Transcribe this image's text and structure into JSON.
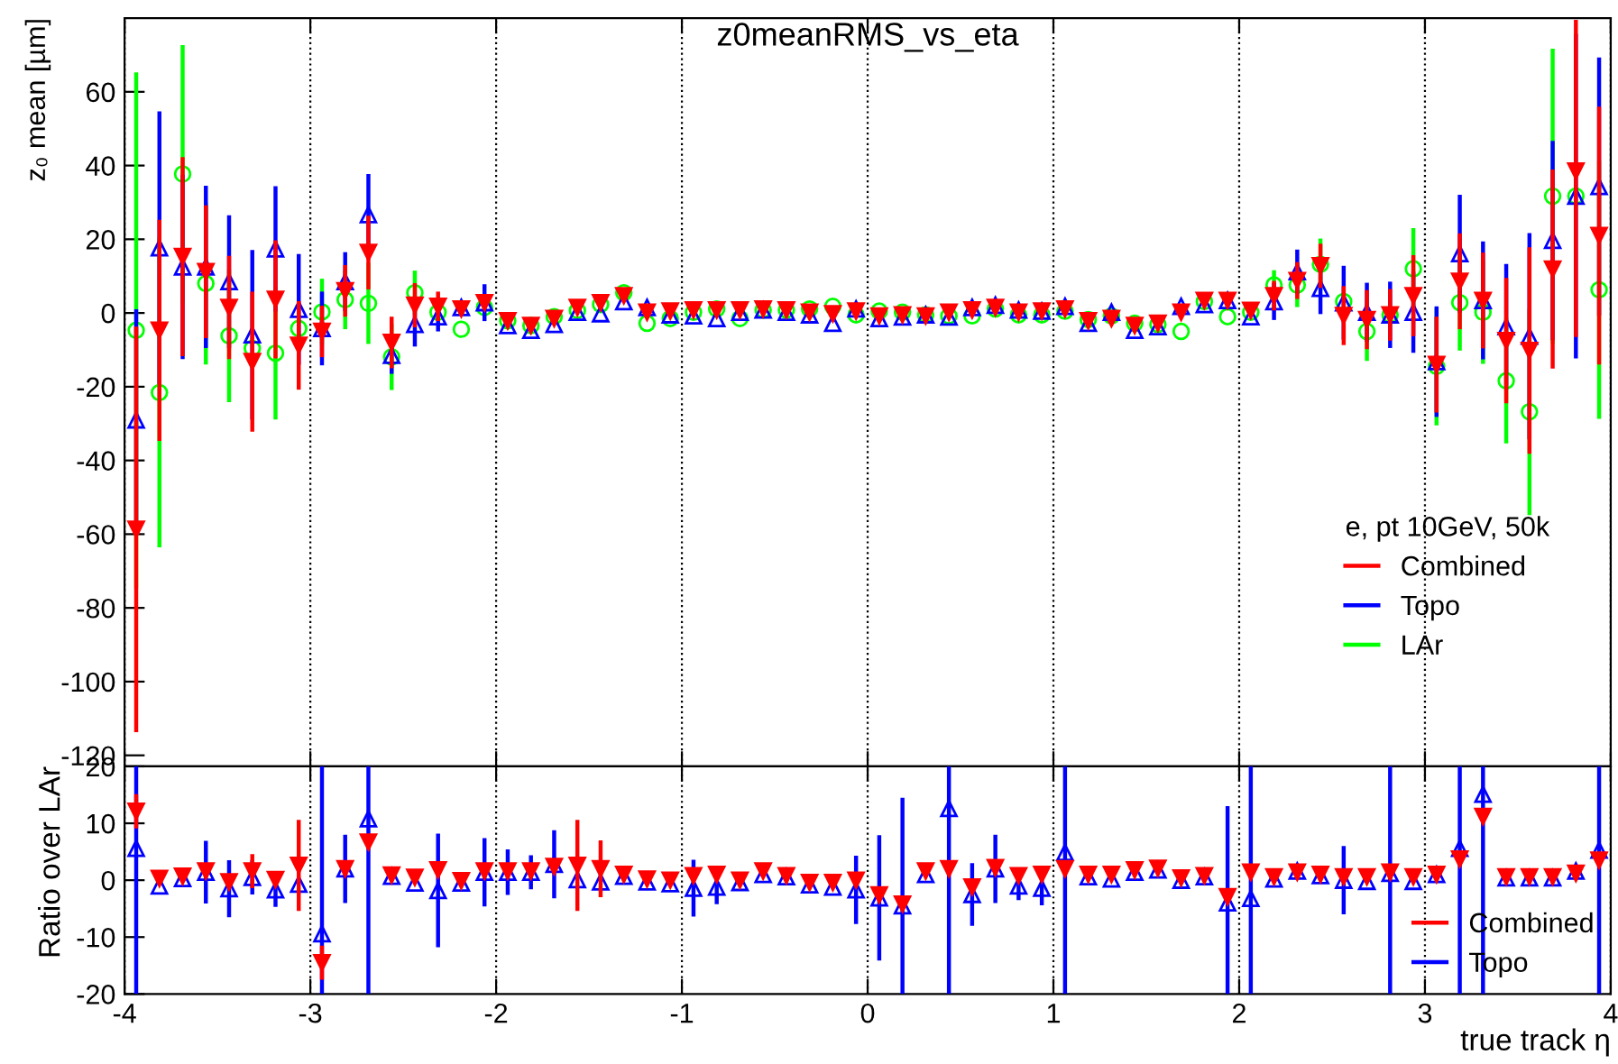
{
  "chart_data": [
    {
      "type": "scatter",
      "title": "z0meanRMS_vs_eta",
      "ylabel": "z₀ mean [µm]",
      "legend_title": "e, pt 10GeV, 50k",
      "legend": "bottom right",
      "grid": "x",
      "tick_labels": "y",
      "xlim": [
        -4,
        4
      ],
      "xticks": [
        -4,
        -3,
        -2,
        -1,
        0,
        1,
        2,
        3,
        4
      ],
      "ylim": [
        -123,
        80
      ],
      "yticks": [
        -120,
        -100,
        -80,
        -60,
        -40,
        -20,
        0,
        20,
        40,
        60
      ],
      "x": [
        -3.9375,
        -3.8125,
        -3.6875,
        -3.5625,
        -3.4375,
        -3.3125,
        -3.1875,
        -3.0625,
        -2.9375,
        -2.8125,
        -2.6875,
        -2.5625,
        -2.4375,
        -2.3125,
        -2.1875,
        -2.0625,
        -1.9375,
        -1.8125,
        -1.6875,
        -1.5625,
        -1.4375,
        -1.3125,
        -1.1875,
        -1.0625,
        -0.9375,
        -0.8125,
        -0.6875,
        -0.5625,
        -0.4375,
        -0.3125,
        -0.1875,
        -0.0625,
        0.0625,
        0.1875,
        0.3125,
        0.4375,
        0.5625,
        0.6875,
        0.8125,
        0.9375,
        1.0625,
        1.1875,
        1.3125,
        1.4375,
        1.5625,
        1.6875,
        1.8125,
        1.9375,
        2.0625,
        2.1875,
        2.3125,
        2.4375,
        2.5625,
        2.6875,
        2.8125,
        2.9375,
        3.0625,
        3.1875,
        3.3125,
        3.4375,
        3.5625,
        3.6875,
        3.8125,
        3.9375
      ],
      "series": [
        {
          "name": "Combined",
          "color": "#ff0000",
          "marker": "triangle",
          "values": [
            -58.7,
            -4.7,
            15.3,
            11.2,
            1.5,
            -13.2,
            3.7,
            -8.8,
            -5.0,
            6.0,
            16.4,
            -8.0,
            2.1,
            1.8,
            1.1,
            2.8,
            -2.1,
            -3.4,
            -1.5,
            1.5,
            2.8,
            4.7,
            0.2,
            0.5,
            0.8,
            0.8,
            0.8,
            1.1,
            0.8,
            0.2,
            -0.2,
            0.5,
            -0.8,
            -0.5,
            -0.8,
            0.2,
            0.8,
            1.5,
            0.2,
            0.5,
            1.1,
            -2.1,
            -1.5,
            -3.4,
            -2.8,
            0.2,
            3.4,
            3.4,
            0.7,
            4.7,
            8.8,
            12.8,
            -0.7,
            -1.8,
            -0.5,
            4.7,
            -14.0,
            8.6,
            3.4,
            -7.5,
            -10.2,
            11.9,
            38.5,
            21.0
          ],
          "errors": [
            55,
            30,
            27,
            18,
            14,
            19,
            16,
            12,
            7,
            7,
            10,
            7,
            6,
            4,
            null,
            null,
            null,
            null,
            null,
            null,
            null,
            null,
            null,
            null,
            null,
            null,
            null,
            null,
            null,
            null,
            null,
            null,
            null,
            null,
            null,
            null,
            null,
            null,
            null,
            null,
            null,
            null,
            null,
            null,
            null,
            null,
            null,
            null,
            null,
            4,
            5,
            6,
            8,
            8,
            7,
            11,
            13,
            13,
            13,
            17,
            28,
            27,
            [
              -6.5,
              79.5
            ],
            35
          ]
        },
        {
          "name": "Topo",
          "color": "#0000ff",
          "marker": "triangle",
          "values": [
            -29.0,
            17.7,
            12.5,
            12.5,
            8.5,
            -5.9,
            17.4,
            1.0,
            -4.2,
            8.5,
            26.7,
            -11.5,
            -3.1,
            -1.0,
            1.5,
            2.8,
            -3.4,
            -4.7,
            -3.1,
            0.2,
            -0.2,
            3.1,
            1.5,
            -0.5,
            -0.8,
            -1.5,
            0.2,
            0.8,
            0.2,
            -0.5,
            -2.8,
            1.1,
            -1.5,
            -1.1,
            -0.5,
            -1.1,
            1.5,
            2.1,
            0.8,
            0.5,
            1.8,
            -2.8,
            0.2,
            -4.7,
            -3.7,
            1.8,
            2.3,
            3.4,
            -1.0,
            3.1,
            11.2,
            6.7,
            2.8,
            0.2,
            -0.5,
            0.2,
            -13.2,
            16.1,
            3.4,
            -3.7,
            -6.3,
            19.7,
            31.7,
            34.3
          ],
          "errors": [
            30,
            37,
            25,
            22,
            18,
            23,
            17,
            15,
            10,
            8,
            11,
            5,
            6,
            4,
            null,
            5,
            null,
            null,
            null,
            null,
            null,
            null,
            null,
            null,
            null,
            null,
            null,
            null,
            null,
            null,
            null,
            null,
            null,
            null,
            null,
            null,
            null,
            null,
            null,
            null,
            null,
            null,
            null,
            null,
            null,
            null,
            null,
            null,
            null,
            5,
            6,
            7,
            10,
            8,
            9,
            11,
            15,
            16,
            16,
            17,
            28,
            27,
            44,
            35
          ]
        },
        {
          "name": "LAr",
          "color": "#00ff00",
          "marker": "circle",
          "values": [
            -4.7,
            -21.6,
            37.7,
            8.0,
            -6.2,
            -9.6,
            -10.9,
            -4.2,
            0.3,
            3.6,
            2.6,
            -11.9,
            5.5,
            0.2,
            -4.4,
            1.5,
            -2.1,
            -3.4,
            -1.0,
            0.7,
            2.3,
            5.5,
            -2.8,
            -1.5,
            0.2,
            1.1,
            -1.5,
            0.8,
            0.8,
            1.1,
            1.8,
            -0.5,
            0.5,
            0.2,
            -0.5,
            -0.8,
            -0.8,
            1.1,
            -0.5,
            -0.5,
            0.5,
            -1.8,
            -0.8,
            -2.8,
            -3.1,
            -5.0,
            3.1,
            -1.0,
            0.2,
            7.6,
            7.6,
            13.2,
            3.1,
            -5.0,
            -0.5,
            12.0,
            -14.5,
            2.8,
            0.2,
            -18.4,
            -26.8,
            31.7,
            31.7,
            6.3
          ],
          "errors": [
            70,
            42,
            35,
            22,
            18,
            null,
            18,
            null,
            9,
            8,
            11,
            9,
            6,
            null,
            null,
            null,
            null,
            null,
            null,
            null,
            null,
            null,
            null,
            null,
            null,
            null,
            null,
            null,
            null,
            null,
            null,
            null,
            null,
            null,
            null,
            null,
            null,
            null,
            null,
            null,
            null,
            null,
            null,
            null,
            null,
            null,
            null,
            null,
            null,
            4,
            6,
            7,
            null,
            8,
            null,
            11,
            16,
            13,
            14,
            17,
            28,
            40,
            null,
            35
          ]
        }
      ]
    },
    {
      "type": "scatter",
      "ylabel": "Ratio over LAr",
      "xlabel": "true track η",
      "legend": "bottom right",
      "grid": "x",
      "xlim": [
        -4,
        4
      ],
      "xticks": [
        -4,
        -3,
        -2,
        -1,
        0,
        1,
        2,
        3,
        4
      ],
      "ylim": [
        -20,
        20
      ],
      "yticks": [
        -20,
        -10,
        0,
        10,
        20
      ],
      "x": [
        -3.9375,
        -3.8125,
        -3.6875,
        -3.5625,
        -3.4375,
        -3.3125,
        -3.1875,
        -3.0625,
        -2.9375,
        -2.8125,
        -2.6875,
        -2.5625,
        -2.4375,
        -2.3125,
        -2.1875,
        -2.0625,
        -1.9375,
        -1.8125,
        -1.6875,
        -1.5625,
        -1.4375,
        -1.3125,
        -1.1875,
        -1.0625,
        -0.9375,
        -0.8125,
        -0.6875,
        -0.5625,
        -0.4375,
        -0.3125,
        -0.1875,
        -0.0625,
        0.0625,
        0.1875,
        0.3125,
        0.4375,
        0.5625,
        0.6875,
        0.8125,
        0.9375,
        1.0625,
        1.1875,
        1.3125,
        1.4375,
        1.5625,
        1.6875,
        1.8125,
        1.9375,
        2.0625,
        2.1875,
        2.3125,
        2.4375,
        2.5625,
        2.6875,
        2.8125,
        2.9375,
        3.0625,
        3.1875,
        3.3125,
        3.4375,
        3.5625,
        3.6875,
        3.8125,
        3.9375
      ],
      "series": [
        {
          "name": "Combined",
          "color": "#ff0000",
          "marker": "triangle",
          "values": [
            12.1,
            0.3,
            0.7,
            1.6,
            -0.3,
            1.6,
            0.1,
            2.6,
            -14.5,
            2.0,
            6.7,
            0.9,
            0.5,
            1.8,
            -0.1,
            1.6,
            1.6,
            1.6,
            2.4,
            2.6,
            2.0,
            1.0,
            0.2,
            0.0,
            0.8,
            1.0,
            0.0,
            1.6,
            0.8,
            -0.4,
            -0.4,
            0.0,
            -2.6,
            -4.2,
            1.6,
            2.0,
            -1.2,
            2.2,
            0.8,
            1.0,
            2.0,
            1.0,
            1.0,
            1.8,
            2.1,
            0.4,
            0.8,
            -2.9,
            1.4,
            0.6,
            1.4,
            1.0,
            0.6,
            0.6,
            1.4,
            0.6,
            1.0,
            3.7,
            11.2,
            0.6,
            0.6,
            0.6,
            1.2,
            3.5
          ],
          "errors": [
            3,
            null,
            null,
            null,
            null,
            3,
            null,
            8,
            3,
            null,
            null,
            null,
            null,
            null,
            null,
            null,
            null,
            null,
            null,
            8,
            5,
            null,
            null,
            null,
            null,
            null,
            null,
            null,
            null,
            null,
            null,
            null,
            null,
            null,
            null,
            null,
            null,
            null,
            null,
            null,
            null,
            null,
            null,
            null,
            null,
            null,
            null,
            null,
            null,
            null,
            null,
            null,
            null,
            null,
            null,
            null,
            null,
            null,
            null,
            null,
            null,
            null,
            null,
            null
          ]
        },
        {
          "name": "Topo",
          "color": "#0000ff",
          "marker": "triangle",
          "values": [
            5.6,
            -1.0,
            0.3,
            1.4,
            -1.5,
            0.5,
            -1.7,
            -0.7,
            -9.4,
            2.0,
            10.8,
            0.7,
            -0.5,
            -1.8,
            -0.5,
            1.4,
            1.4,
            1.4,
            2.8,
            0.1,
            -0.3,
            0.7,
            -0.3,
            -0.6,
            -1.4,
            -1.2,
            -0.4,
            1.0,
            0.6,
            -0.8,
            -1.2,
            -1.7,
            -3.1,
            -4.5,
            1.0,
            12.6,
            -2.5,
            2.0,
            -1.0,
            -1.4,
            4.9,
            0.6,
            0.2,
            1.4,
            1.8,
            0.0,
            0.6,
            -4.0,
            -3.2,
            0.2,
            1.6,
            0.8,
            0.0,
            -0.2,
            1.2,
            -0.2,
            1.0,
            5.6,
            15.1,
            0.4,
            0.4,
            0.4,
            1.6,
            5.3
          ],
          "errors": [
            [
              -20,
              20
            ],
            null,
            null,
            5.5,
            5,
            3,
            3,
            null,
            [
              -20,
              20
            ],
            6,
            [
              -20,
              20
            ],
            null,
            null,
            10,
            null,
            6,
            4,
            3,
            6,
            null,
            null,
            null,
            null,
            null,
            5,
            3,
            null,
            null,
            null,
            null,
            null,
            6,
            11,
            [
              -20,
              14.5
            ],
            null,
            [
              -20,
              20
            ],
            5.5,
            6,
            2.5,
            3,
            [
              -20,
              20
            ],
            null,
            null,
            null,
            null,
            null,
            null,
            [
              -20,
              13
            ],
            [
              -20,
              20
            ],
            null,
            null,
            null,
            6,
            null,
            [
              -20,
              20
            ],
            null,
            null,
            [
              -20,
              20
            ],
            [
              -20,
              20
            ],
            null,
            null,
            null,
            null,
            [
              -20,
              20
            ]
          ]
        }
      ]
    }
  ]
}
